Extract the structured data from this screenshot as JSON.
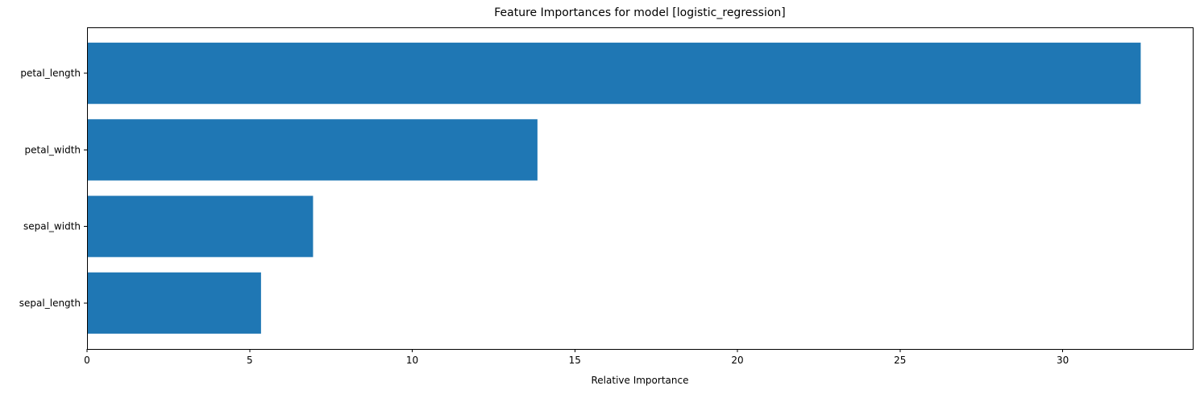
{
  "chart_data": {
    "type": "bar",
    "orientation": "horizontal",
    "title": "Feature Importances for model [logistic_regression]",
    "xlabel": "Relative Importance",
    "ylabel": "",
    "categories": [
      "sepal_length",
      "sepal_width",
      "petal_width",
      "petal_length"
    ],
    "values": [
      5.35,
      6.95,
      13.85,
      32.4
    ],
    "xlim": [
      0,
      34.0
    ],
    "xticks": [
      0,
      5,
      10,
      15,
      20,
      25,
      30
    ],
    "bar_color": "#1f77b4",
    "grid": false
  }
}
